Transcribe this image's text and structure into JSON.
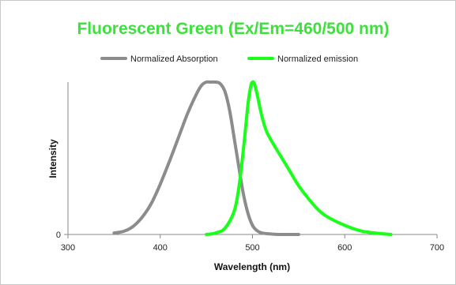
{
  "chart_data": {
    "type": "line",
    "title": "Fluorescent Green (Ex/Em=460/500 nm)",
    "xlabel": "Wavelength (nm)",
    "ylabel": "Intensity",
    "xlim": [
      300,
      700
    ],
    "ylim": [
      0,
      1.0
    ],
    "x_ticks": [
      "300",
      "400",
      "500",
      "600",
      "700"
    ],
    "y_ticks": [
      "0"
    ],
    "grid": false,
    "legend_position": "top",
    "colors": {
      "title": "#3de03d",
      "absorption": "#8c8c8c",
      "emission": "#1aff1a"
    },
    "series": [
      {
        "name": "Normalized Absorption",
        "x": [
          350,
          360,
          370,
          380,
          390,
          400,
          410,
          420,
          430,
          440,
          445,
          450,
          455,
          460,
          465,
          470,
          475,
          480,
          485,
          490,
          495,
          500,
          505,
          510,
          520,
          530,
          550
        ],
        "y": [
          0.01,
          0.02,
          0.05,
          0.11,
          0.2,
          0.33,
          0.48,
          0.64,
          0.8,
          0.93,
          0.98,
          1.0,
          1.0,
          1.0,
          0.99,
          0.94,
          0.82,
          0.64,
          0.45,
          0.27,
          0.14,
          0.06,
          0.025,
          0.01,
          0.003,
          0.0,
          0.0
        ]
      },
      {
        "name": "Normalized emission",
        "x": [
          450,
          460,
          470,
          480,
          485,
          490,
          495,
          498,
          500,
          502,
          505,
          510,
          515,
          520,
          530,
          540,
          550,
          560,
          570,
          580,
          600,
          620,
          650
        ],
        "y": [
          0.0,
          0.01,
          0.04,
          0.15,
          0.3,
          0.55,
          0.85,
          0.97,
          1.0,
          0.99,
          0.92,
          0.78,
          0.68,
          0.62,
          0.52,
          0.42,
          0.32,
          0.24,
          0.17,
          0.12,
          0.06,
          0.02,
          0.0
        ]
      }
    ]
  }
}
